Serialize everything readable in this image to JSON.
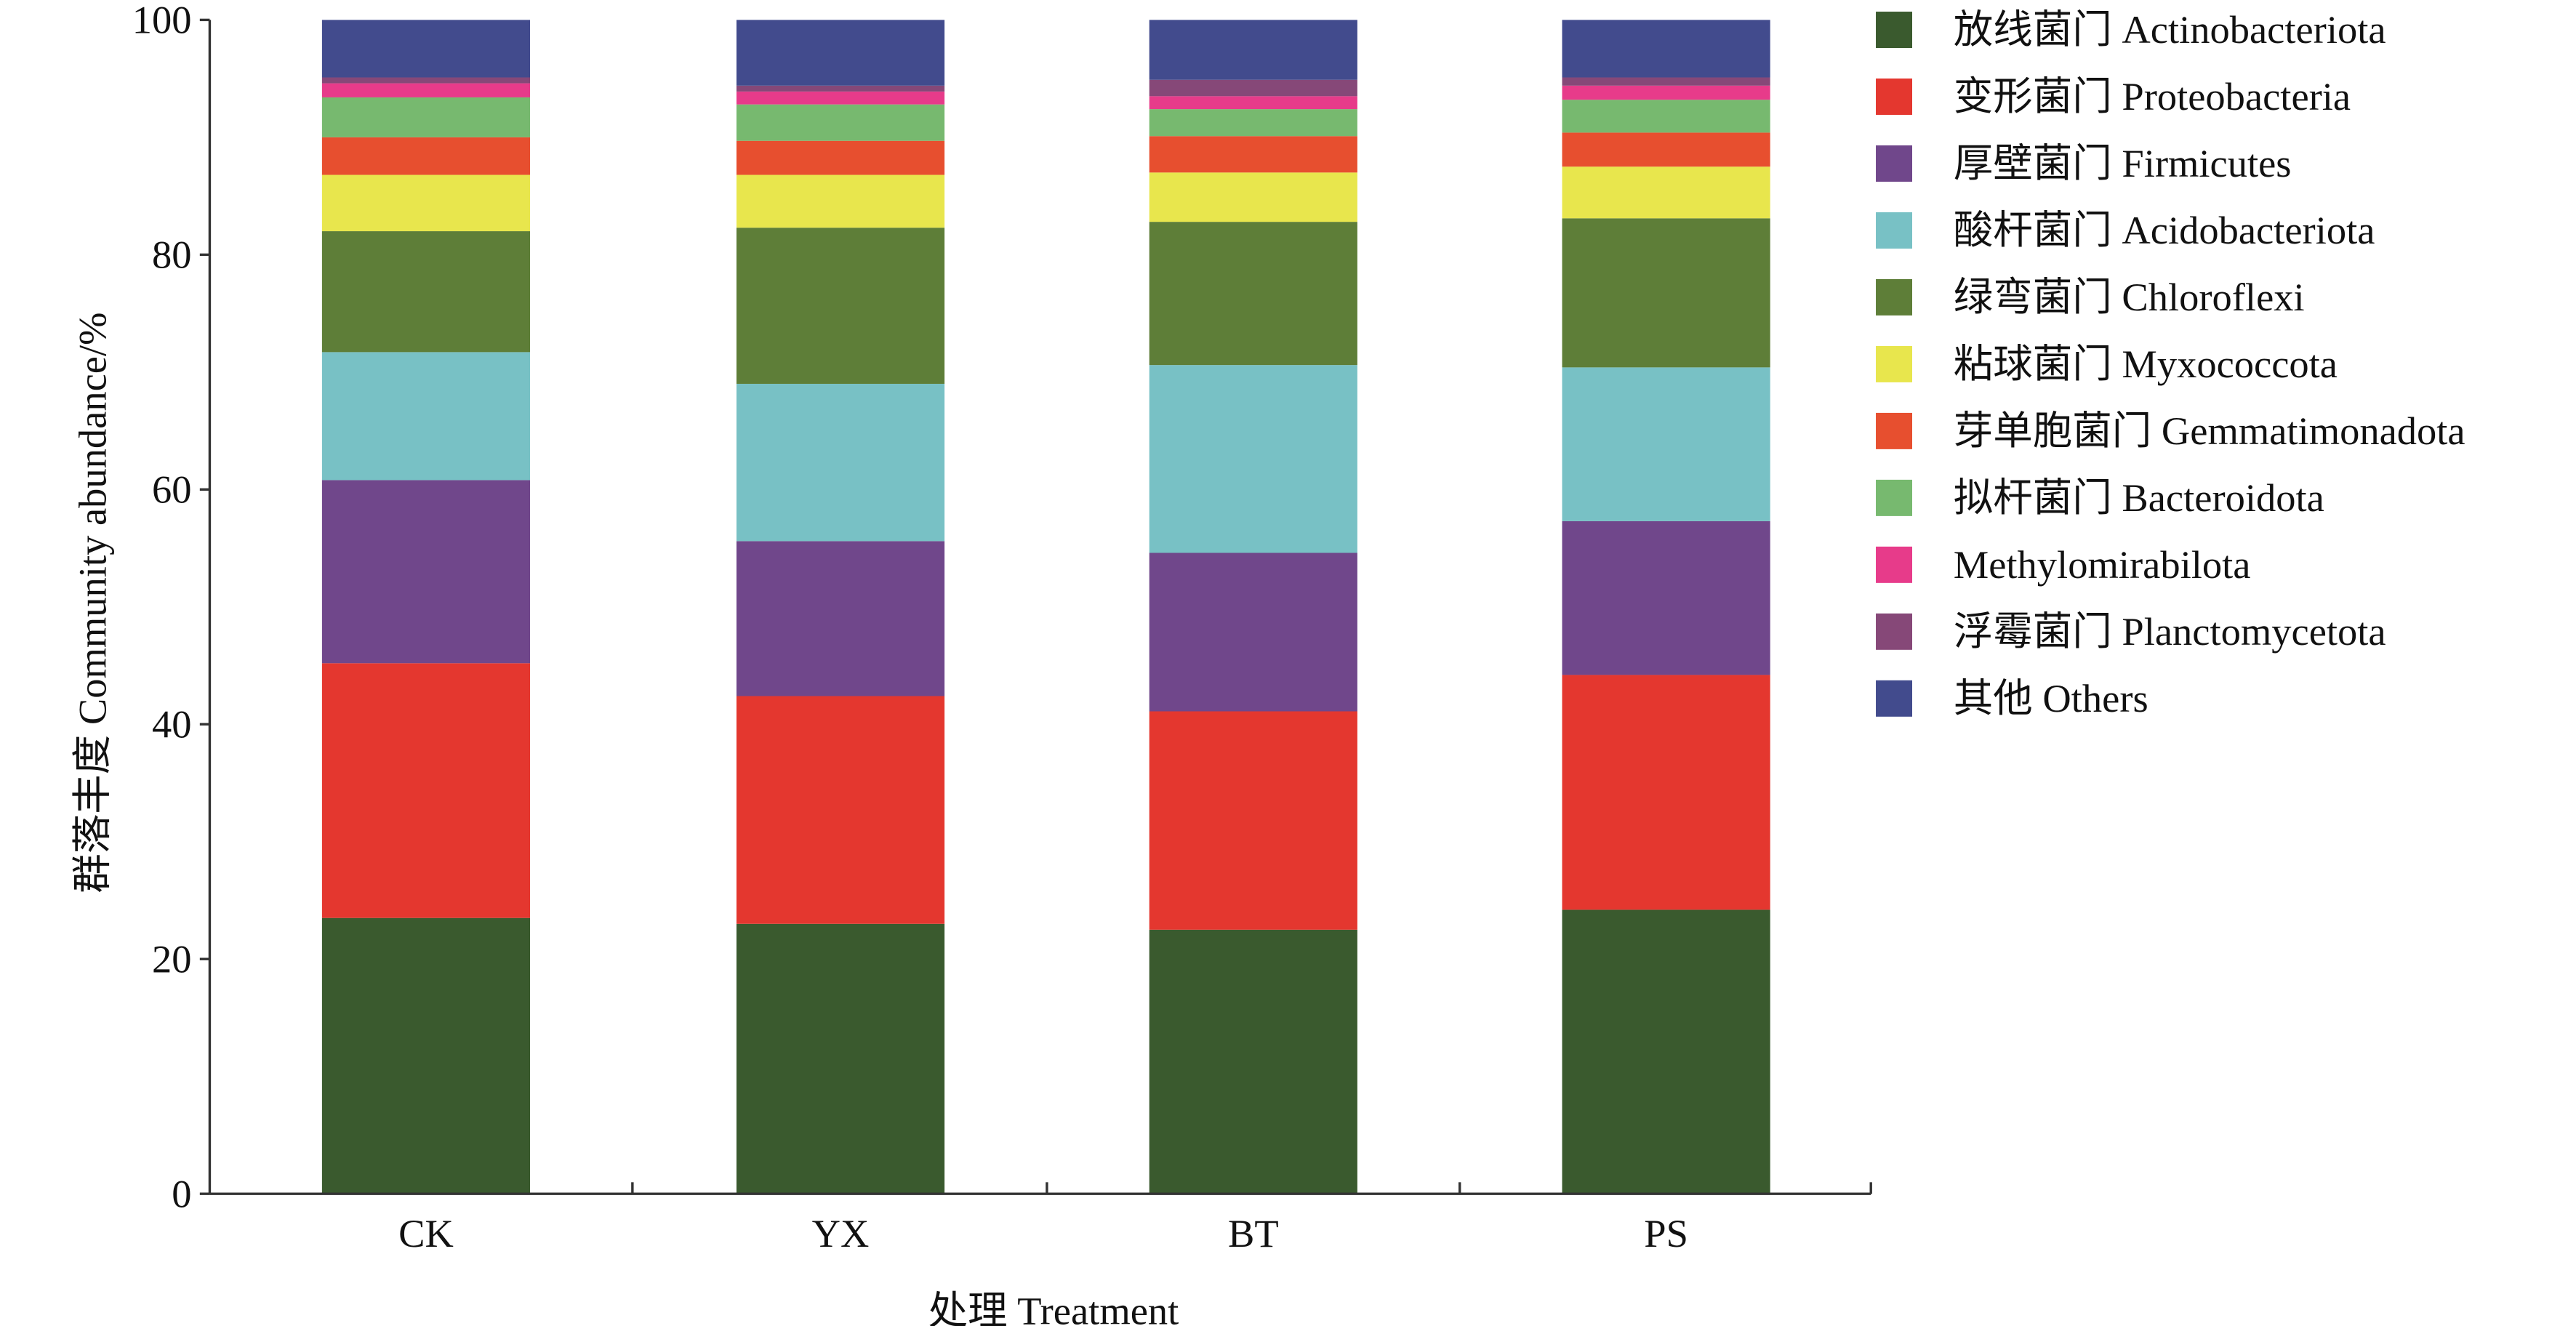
{
  "chart_data": {
    "type": "bar",
    "stacked": true,
    "title": "",
    "xlabel": "处理 Treatment",
    "ylabel": "群落丰度 Community abundance/%",
    "ylim": [
      0,
      100
    ],
    "yticks": [
      "0",
      "20",
      "40",
      "60",
      "80",
      "100"
    ],
    "categories": [
      "CK",
      "YX",
      "BT",
      "PS"
    ],
    "legend_position": "right",
    "series": [
      {
        "name": "放线菌门 Actinobacteriota",
        "color": "#3a5a2e",
        "values": [
          23.5,
          23.0,
          22.5,
          24.2
        ]
      },
      {
        "name": "变形菌门 Proteobacteria",
        "color": "#e4372f",
        "values": [
          21.7,
          19.4,
          18.6,
          20.0
        ]
      },
      {
        "name": "厚壁菌门 Firmicutes",
        "color": "#70478b",
        "values": [
          15.6,
          13.2,
          13.5,
          13.1
        ]
      },
      {
        "name": "酸杆菌门 Acidobacteriota",
        "color": "#78c1c5",
        "values": [
          10.9,
          13.4,
          16.0,
          13.1
        ]
      },
      {
        "name": "绿弯菌门 Chloroflexi",
        "color": "#5e7e38",
        "values": [
          10.3,
          13.3,
          12.2,
          12.7
        ]
      },
      {
        "name": "粘球菌门 Myxococcota",
        "color": "#e8e64d",
        "values": [
          4.8,
          4.5,
          4.2,
          4.4
        ]
      },
      {
        "name": "芽单胞菌门 Gemmatimonadota",
        "color": "#e74f2f",
        "values": [
          3.2,
          2.9,
          3.1,
          2.9
        ]
      },
      {
        "name": "拟杆菌门 Bacteroidota",
        "color": "#77b96f",
        "values": [
          3.4,
          3.1,
          2.3,
          2.8
        ]
      },
      {
        "name": "Methylomirabilota",
        "color": "#e73b8a",
        "values": [
          1.2,
          1.1,
          1.1,
          1.2
        ]
      },
      {
        "name": "浮霉菌门 Planctomycetota",
        "color": "#864878",
        "values": [
          0.5,
          0.5,
          1.4,
          0.7
        ]
      },
      {
        "name": "其他 Others",
        "color": "#424b8d",
        "values": [
          4.9,
          5.6,
          5.1,
          4.9
        ]
      }
    ]
  }
}
